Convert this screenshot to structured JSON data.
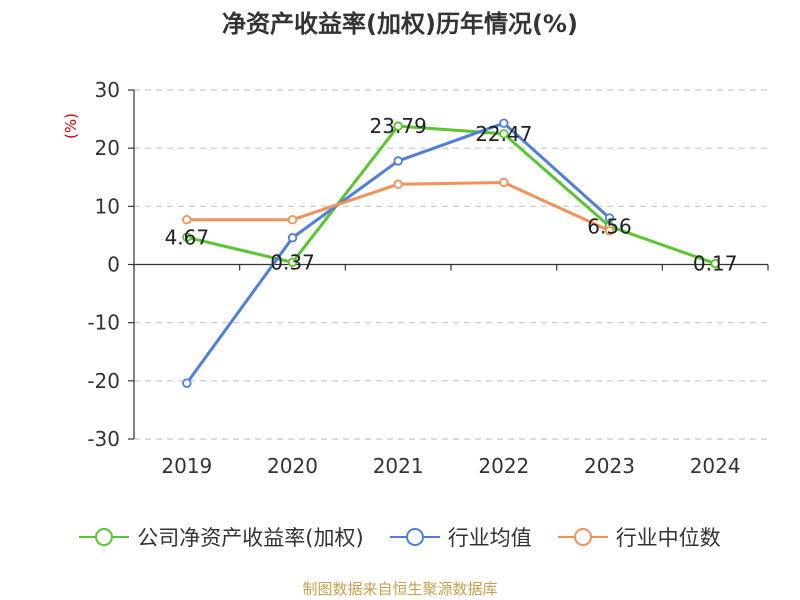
{
  "chart_data": {
    "type": "line",
    "title": "净资产收益率(加权)历年情况(%)",
    "ylabel": "(%)",
    "xlabel": "",
    "categories": [
      "2019",
      "2020",
      "2021",
      "2022",
      "2023",
      "2024"
    ],
    "ylim": [
      -30,
      30
    ],
    "yticks": [
      30,
      20,
      10,
      0,
      -10,
      -20,
      -30
    ],
    "grid": true,
    "legend_position": "bottom",
    "series": [
      {
        "name": "公司净资产收益率(加权)",
        "color": "#5ac530",
        "values": [
          4.67,
          0.37,
          23.79,
          22.47,
          6.56,
          0.17
        ],
        "labels": [
          "4.67",
          "0.37",
          "23.79",
          "22.47",
          "6.56",
          "0.17"
        ]
      },
      {
        "name": "行业均值",
        "color": "#4f7fdc",
        "values": [
          -20.4,
          4.6,
          17.8,
          24.3,
          8.0,
          null
        ]
      },
      {
        "name": "行业中位数",
        "color": "#f4905a",
        "values": [
          7.7,
          7.7,
          13.8,
          14.1,
          5.8,
          null
        ]
      }
    ]
  },
  "source": "制图数据来自恒生聚源数据库"
}
